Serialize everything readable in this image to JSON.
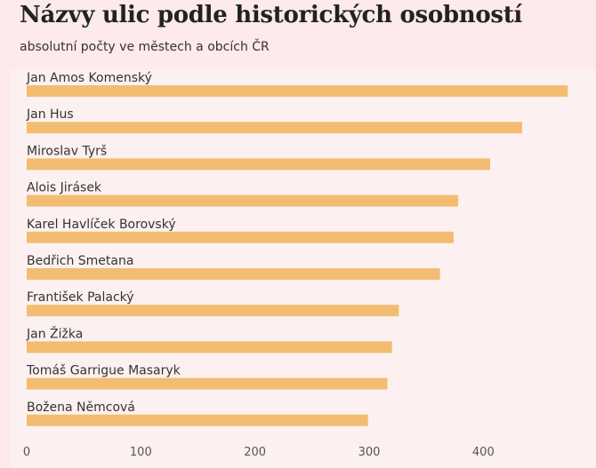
{
  "chart_data": {
    "type": "bar",
    "orientation": "horizontal",
    "title": "Názvy ulic podle historických osobností",
    "subtitle": "absolutní počty ve městech a obcích ČR",
    "categories": [
      "Jan Amos Komenský",
      "Jan Hus",
      "Miroslav Tyrš",
      "Alois Jirásek",
      "Karel Havlíček Borovský",
      "Bedřich Smetana",
      "František Palacký",
      "Jan Žižka",
      "Tomáš Garrigue Masaryk",
      "Božena Němcová"
    ],
    "values": [
      474,
      434,
      406,
      378,
      374,
      362,
      326,
      320,
      316,
      299
    ],
    "xlim": [
      0,
      480
    ],
    "xticks": [
      0,
      100,
      200,
      300,
      400
    ],
    "bar_color": "#f2bd72",
    "background": "#fdeaea",
    "grid": false
  }
}
